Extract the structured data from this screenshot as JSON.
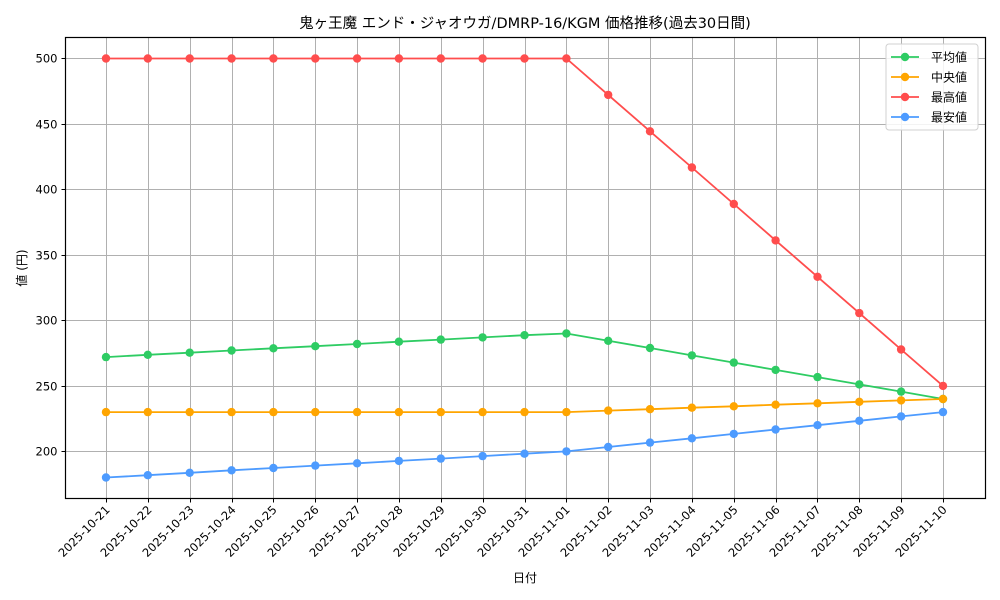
{
  "chart_data": {
    "type": "line",
    "title": "鬼ヶ王魔 エンド・ジャオウガ/DMRP-16/KGM 価格推移(過去30日間)",
    "xlabel": "日付",
    "ylabel": "値 (円)",
    "ylim": [
      164,
      516
    ],
    "yticks": [
      200,
      250,
      300,
      350,
      400,
      450,
      500
    ],
    "grid": true,
    "legend_position": "upper right",
    "categories": [
      "2025-10-21",
      "2025-10-22",
      "2025-10-23",
      "2025-10-24",
      "2025-10-25",
      "2025-10-26",
      "2025-10-27",
      "2025-10-28",
      "2025-10-29",
      "2025-10-30",
      "2025-10-31",
      "2025-11-01",
      "2025-11-02",
      "2025-11-03",
      "2025-11-04",
      "2025-11-05",
      "2025-11-06",
      "2025-11-07",
      "2025-11-08",
      "2025-11-09",
      "2025-11-10"
    ],
    "series": [
      {
        "name": "平均値",
        "color": "#2ecc63",
        "values": [
          272,
          273.7,
          275.3,
          277,
          278.7,
          280.3,
          282,
          283.7,
          285.3,
          287,
          288.7,
          290,
          284.4,
          278.9,
          273.3,
          267.8,
          262.2,
          256.7,
          251.1,
          245.6,
          240
        ]
      },
      {
        "name": "中央値",
        "color": "#ffa500",
        "values": [
          230,
          230,
          230,
          230,
          230,
          230,
          230,
          230,
          230,
          230,
          230,
          230,
          231.1,
          232.2,
          233.3,
          234.4,
          235.6,
          236.7,
          237.8,
          238.9,
          240
        ]
      },
      {
        "name": "最高値",
        "color": "#ff4d4d",
        "values": [
          500,
          500,
          500,
          500,
          500,
          500,
          500,
          500,
          500,
          500,
          500,
          500,
          472.2,
          444.4,
          416.7,
          388.9,
          361.1,
          333.3,
          305.6,
          277.8,
          250
        ]
      },
      {
        "name": "最安値",
        "color": "#4d9bff",
        "values": [
          180,
          181.8,
          183.6,
          185.5,
          187.3,
          189.1,
          190.9,
          192.7,
          194.5,
          196.4,
          198.2,
          200,
          203.3,
          206.7,
          210,
          213.3,
          216.7,
          220,
          223.3,
          226.7,
          230
        ]
      }
    ]
  }
}
